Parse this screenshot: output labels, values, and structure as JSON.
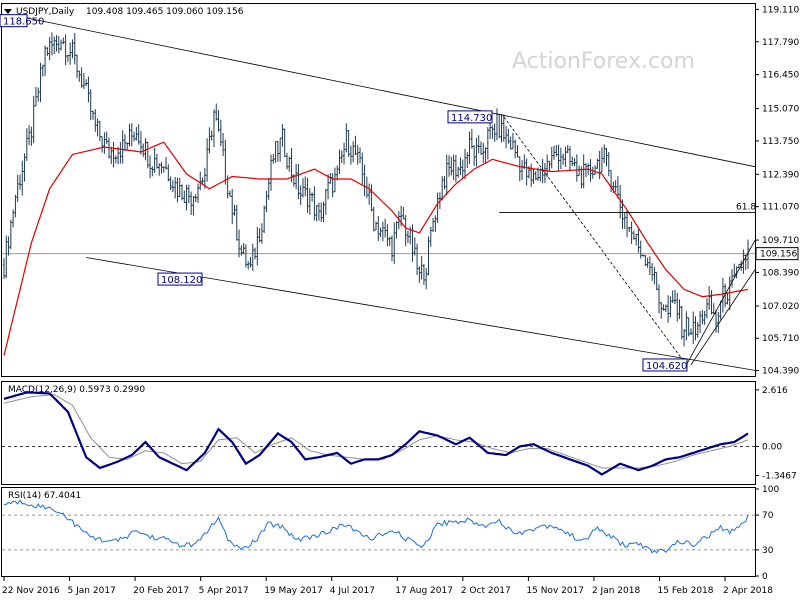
{
  "header": {
    "symbol_label": "USDJPY,Daily",
    "ohlc_label": "109.408 109.465 109.060 109.156",
    "macd_label": "MACD(12,26,9) 0.5973 0.2990",
    "rsi_label": "RSI(14) 67.4041"
  },
  "watermark": "ActionForex.com",
  "colors": {
    "background": "#ffffff",
    "bars": "#1e3a52",
    "ma_line": "#e00000",
    "trendlines": "#000000",
    "macd_main": "#000080",
    "macd_signal": "#909090",
    "rsi_line": "#1e6fd9",
    "label_border": "#000080",
    "price_tag_bg": "#ffffff"
  },
  "chart_data": [
    {
      "type": "line",
      "panel": "price",
      "series_type": "ohlc-bars-with-moving-average",
      "ylim": [
        104.17,
        119.33
      ],
      "y_ticks": [
        "119.110",
        "117.790",
        "116.450",
        "115.070",
        "113.750",
        "112.390",
        "111.070",
        "109.710",
        "108.390",
        "107.020",
        "105.710",
        "104.390"
      ],
      "x_labels": [
        "22 Nov 2016",
        "5 Jan 2017",
        "20 Feb 2017",
        "5 Apr 2017",
        "19 May 2017",
        "4 Jul 2017",
        "17 Aug 2017",
        "2 Oct 2017",
        "15 Nov 2017",
        "2 Jan 2018",
        "15 Feb 2018",
        "2 Apr 2018"
      ],
      "price_anchors": [
        [
          0,
          108.7
        ],
        [
          5,
          111.5
        ],
        [
          12,
          114.2
        ],
        [
          18,
          117.4
        ],
        [
          25,
          117.9
        ],
        [
          30,
          117.3
        ],
        [
          35,
          116.0
        ],
        [
          40,
          114.3
        ],
        [
          46,
          113.3
        ],
        [
          52,
          113.5
        ],
        [
          58,
          114.2
        ],
        [
          64,
          113.0
        ],
        [
          70,
          112.8
        ],
        [
          76,
          111.8
        ],
        [
          82,
          111.5
        ],
        [
          88,
          112.4
        ],
        [
          92,
          114.9
        ],
        [
          96,
          113.0
        ],
        [
          100,
          111.0
        ],
        [
          104,
          109.2
        ],
        [
          108,
          108.5
        ],
        [
          113,
          110.5
        ],
        [
          118,
          113.1
        ],
        [
          122,
          113.8
        ],
        [
          126,
          112.5
        ],
        [
          130,
          111.6
        ],
        [
          134,
          111.5
        ],
        [
          138,
          110.6
        ],
        [
          142,
          111.8
        ],
        [
          146,
          112.3
        ],
        [
          150,
          113.8
        ],
        [
          154,
          113.2
        ],
        [
          158,
          112.1
        ],
        [
          162,
          110.5
        ],
        [
          166,
          110.0
        ],
        [
          170,
          109.5
        ],
        [
          174,
          110.7
        ],
        [
          178,
          109.7
        ],
        [
          182,
          108.2
        ],
        [
          185,
          108.7
        ],
        [
          188,
          110.5
        ],
        [
          192,
          112.1
        ],
        [
          196,
          112.7
        ],
        [
          200,
          112.6
        ],
        [
          204,
          113.5
        ],
        [
          208,
          113.1
        ],
        [
          212,
          113.9
        ],
        [
          216,
          114.4
        ],
        [
          219,
          114.0
        ],
        [
          223,
          113.5
        ],
        [
          227,
          112.7
        ],
        [
          231,
          112.1
        ],
        [
          235,
          112.5
        ],
        [
          239,
          112.9
        ],
        [
          243,
          113.3
        ],
        [
          247,
          113.0
        ],
        [
          251,
          112.5
        ],
        [
          255,
          112.3
        ],
        [
          259,
          112.8
        ],
        [
          263,
          113.0
        ],
        [
          267,
          112.1
        ],
        [
          271,
          110.8
        ],
        [
          275,
          110.0
        ],
        [
          279,
          109.3
        ],
        [
          283,
          108.8
        ],
        [
          287,
          107.3
        ],
        [
          291,
          106.7
        ],
        [
          294,
          107.2
        ],
        [
          297,
          106.2
        ],
        [
          300,
          106.2
        ],
        [
          303,
          105.9
        ],
        [
          306,
          106.7
        ],
        [
          309,
          107.0
        ],
        [
          312,
          106.4
        ],
        [
          315,
          107.4
        ],
        [
          318,
          107.7
        ],
        [
          321,
          108.2
        ],
        [
          324,
          109.0
        ],
        [
          326,
          109.156
        ]
      ],
      "ma_anchors": [
        [
          0,
          105.0
        ],
        [
          12,
          109.6
        ],
        [
          20,
          111.8
        ],
        [
          30,
          113.2
        ],
        [
          44,
          113.5
        ],
        [
          60,
          113.3
        ],
        [
          70,
          113.7
        ],
        [
          80,
          112.4
        ],
        [
          90,
          111.8
        ],
        [
          100,
          112.3
        ],
        [
          112,
          112.2
        ],
        [
          124,
          112.2
        ],
        [
          136,
          112.6
        ],
        [
          144,
          112.2
        ],
        [
          152,
          112.2
        ],
        [
          160,
          111.8
        ],
        [
          170,
          110.9
        ],
        [
          176,
          110.2
        ],
        [
          182,
          110.0
        ],
        [
          190,
          111.2
        ],
        [
          198,
          112.0
        ],
        [
          206,
          112.6
        ],
        [
          214,
          113.0
        ],
        [
          226,
          112.7
        ],
        [
          240,
          112.5
        ],
        [
          256,
          112.6
        ],
        [
          262,
          112.4
        ],
        [
          274,
          110.8
        ],
        [
          282,
          109.6
        ],
        [
          290,
          108.5
        ],
        [
          298,
          107.7
        ],
        [
          306,
          107.4
        ],
        [
          314,
          107.5
        ],
        [
          326,
          107.7
        ]
      ],
      "levels": {
        "last_price": "109.156",
        "fib_level": "61.8",
        "fib_value": 110.83,
        "horizontal_ref": 109.156
      },
      "annotations": [
        "114.730",
        "108.120",
        "104.620",
        "61.8",
        "118.650"
      ],
      "annotation_values": {
        "high_a": 118.65,
        "high_b": 114.73,
        "low_a": 108.12,
        "low_b": 104.62
      }
    },
    {
      "type": "line",
      "panel": "macd",
      "ylim": [
        -1.74,
        2.98
      ],
      "y_ticks": [
        "2.616",
        "0.00",
        "-1.3467"
      ],
      "macd_anchors": [
        [
          0,
          2.2
        ],
        [
          10,
          2.5
        ],
        [
          20,
          2.45
        ],
        [
          28,
          1.6
        ],
        [
          36,
          -0.5
        ],
        [
          42,
          -1.0
        ],
        [
          50,
          -0.7
        ],
        [
          56,
          -0.4
        ],
        [
          62,
          0.2
        ],
        [
          68,
          -0.5
        ],
        [
          74,
          -0.8
        ],
        [
          80,
          -1.1
        ],
        [
          88,
          -0.3
        ],
        [
          94,
          0.8
        ],
        [
          100,
          0.2
        ],
        [
          106,
          -0.8
        ],
        [
          112,
          -0.4
        ],
        [
          120,
          0.6
        ],
        [
          126,
          0.2
        ],
        [
          132,
          -0.6
        ],
        [
          138,
          -0.5
        ],
        [
          146,
          -0.3
        ],
        [
          152,
          -0.8
        ],
        [
          158,
          -0.6
        ],
        [
          164,
          -0.6
        ],
        [
          170,
          -0.4
        ],
        [
          176,
          0.1
        ],
        [
          182,
          0.7
        ],
        [
          190,
          0.5
        ],
        [
          198,
          0.1
        ],
        [
          204,
          0.4
        ],
        [
          212,
          -0.3
        ],
        [
          220,
          -0.4
        ],
        [
          226,
          0.0
        ],
        [
          232,
          0.1
        ],
        [
          240,
          -0.3
        ],
        [
          248,
          -0.6
        ],
        [
          256,
          -0.9
        ],
        [
          262,
          -1.3
        ],
        [
          270,
          -0.8
        ],
        [
          278,
          -1.1
        ],
        [
          284,
          -0.9
        ],
        [
          290,
          -0.6
        ],
        [
          296,
          -0.5
        ],
        [
          302,
          -0.3
        ],
        [
          308,
          -0.1
        ],
        [
          314,
          0.1
        ],
        [
          320,
          0.2
        ],
        [
          326,
          0.5973
        ]
      ],
      "signal_anchors": [
        [
          0,
          2.0
        ],
        [
          12,
          2.3
        ],
        [
          22,
          2.4
        ],
        [
          30,
          1.9
        ],
        [
          38,
          0.4
        ],
        [
          46,
          -0.5
        ],
        [
          54,
          -0.6
        ],
        [
          62,
          -0.2
        ],
        [
          70,
          -0.3
        ],
        [
          78,
          -0.8
        ],
        [
          86,
          -0.7
        ],
        [
          94,
          0.3
        ],
        [
          102,
          0.4
        ],
        [
          110,
          -0.3
        ],
        [
          118,
          0.1
        ],
        [
          126,
          0.4
        ],
        [
          134,
          -0.2
        ],
        [
          142,
          -0.4
        ],
        [
          150,
          -0.5
        ],
        [
          158,
          -0.6
        ],
        [
          166,
          -0.6
        ],
        [
          174,
          -0.2
        ],
        [
          182,
          0.3
        ],
        [
          190,
          0.5
        ],
        [
          198,
          0.3
        ],
        [
          206,
          0.2
        ],
        [
          214,
          -0.1
        ],
        [
          222,
          -0.3
        ],
        [
          230,
          -0.1
        ],
        [
          238,
          -0.1
        ],
        [
          246,
          -0.4
        ],
        [
          254,
          -0.7
        ],
        [
          262,
          -1.0
        ],
        [
          270,
          -1.0
        ],
        [
          278,
          -1.0
        ],
        [
          286,
          -0.9
        ],
        [
          294,
          -0.7
        ],
        [
          302,
          -0.4
        ],
        [
          310,
          -0.2
        ],
        [
          318,
          0.0
        ],
        [
          326,
          0.299
        ]
      ]
    },
    {
      "type": "line",
      "panel": "rsi",
      "ylim": [
        0,
        100
      ],
      "y_ticks": [
        "100",
        "70",
        "30",
        "0"
      ],
      "rsi_anchors": [
        [
          0,
          83
        ],
        [
          8,
          85
        ],
        [
          16,
          80
        ],
        [
          24,
          75
        ],
        [
          30,
          62
        ],
        [
          36,
          48
        ],
        [
          42,
          42
        ],
        [
          50,
          40
        ],
        [
          58,
          52
        ],
        [
          64,
          45
        ],
        [
          70,
          43
        ],
        [
          78,
          35
        ],
        [
          84,
          36
        ],
        [
          90,
          55
        ],
        [
          94,
          65
        ],
        [
          98,
          42
        ],
        [
          104,
          30
        ],
        [
          110,
          40
        ],
        [
          116,
          60
        ],
        [
          122,
          57
        ],
        [
          128,
          42
        ],
        [
          134,
          45
        ],
        [
          142,
          50
        ],
        [
          148,
          60
        ],
        [
          154,
          52
        ],
        [
          160,
          43
        ],
        [
          166,
          48
        ],
        [
          172,
          50
        ],
        [
          178,
          40
        ],
        [
          184,
          35
        ],
        [
          190,
          60
        ],
        [
          196,
          62
        ],
        [
          204,
          64
        ],
        [
          210,
          57
        ],
        [
          216,
          65
        ],
        [
          222,
          52
        ],
        [
          228,
          50
        ],
        [
          236,
          58
        ],
        [
          242,
          57
        ],
        [
          248,
          47
        ],
        [
          254,
          40
        ],
        [
          260,
          55
        ],
        [
          266,
          45
        ],
        [
          272,
          35
        ],
        [
          278,
          38
        ],
        [
          284,
          27
        ],
        [
          290,
          30
        ],
        [
          296,
          40
        ],
        [
          302,
          36
        ],
        [
          308,
          45
        ],
        [
          314,
          55
        ],
        [
          318,
          50
        ],
        [
          322,
          58
        ],
        [
          326,
          67.4
        ]
      ]
    }
  ]
}
